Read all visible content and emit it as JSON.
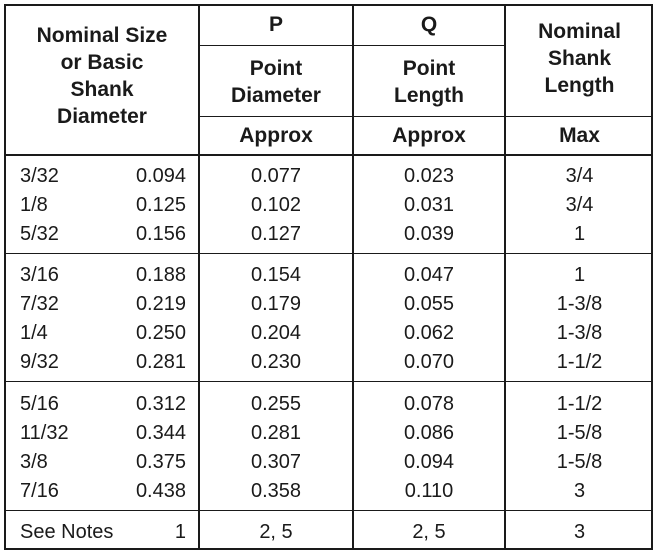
{
  "header": {
    "col1": "Nominal Size\nor Basic\nShank\nDiameter",
    "p_letter": "P",
    "p_title": "Point\nDiameter",
    "q_letter": "Q",
    "q_title": "Point\nLength",
    "shank_title": "Nominal\nShank\nLength",
    "p_sub": "Approx",
    "q_sub": "Approx",
    "shank_sub": "Max"
  },
  "groups": [
    [
      {
        "size": "3/32",
        "dia": "0.094",
        "p": "0.077",
        "q": "0.023",
        "len": "3/4"
      },
      {
        "size": "1/8",
        "dia": "0.125",
        "p": "0.102",
        "q": "0.031",
        "len": "3/4"
      },
      {
        "size": "5/32",
        "dia": "0.156",
        "p": "0.127",
        "q": "0.039",
        "len": "1"
      }
    ],
    [
      {
        "size": "3/16",
        "dia": "0.188",
        "p": "0.154",
        "q": "0.047",
        "len": "1"
      },
      {
        "size": "7/32",
        "dia": "0.219",
        "p": "0.179",
        "q": "0.055",
        "len": "1-3/8"
      },
      {
        "size": "1/4",
        "dia": "0.250",
        "p": "0.204",
        "q": "0.062",
        "len": "1-3/8"
      },
      {
        "size": "9/32",
        "dia": "0.281",
        "p": "0.230",
        "q": "0.070",
        "len": "1-1/2"
      }
    ],
    [
      {
        "size": "5/16",
        "dia": "0.312",
        "p": "0.255",
        "q": "0.078",
        "len": "1-1/2"
      },
      {
        "size": "11/32",
        "dia": "0.344",
        "p": "0.281",
        "q": "0.086",
        "len": "1-5/8"
      },
      {
        "size": "3/8",
        "dia": "0.375",
        "p": "0.307",
        "q": "0.094",
        "len": "1-5/8"
      },
      {
        "size": "7/16",
        "dia": "0.438",
        "p": "0.358",
        "q": "0.110",
        "len": "3"
      }
    ]
  ],
  "notes": {
    "label": "See Notes",
    "col1": "1",
    "p": "2, 5",
    "q": "2, 5",
    "shank": "3"
  }
}
